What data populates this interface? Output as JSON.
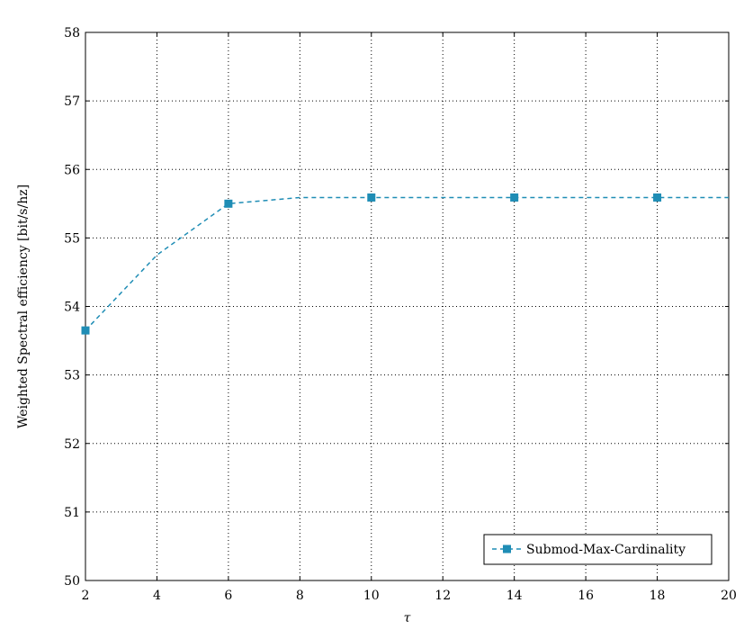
{
  "chart_data": {
    "type": "line",
    "title": "",
    "xlabel": "τ",
    "ylabel": "Weighted Spectral efficiency [bit/s/hz]",
    "xlim": [
      2,
      20
    ],
    "ylim": [
      50,
      58
    ],
    "xticks": [
      2,
      4,
      6,
      8,
      10,
      12,
      14,
      16,
      18,
      20
    ],
    "yticks": [
      50,
      51,
      52,
      53,
      54,
      55,
      56,
      57,
      58
    ],
    "grid": true,
    "legend_position": "bottom-right",
    "series": [
      {
        "name": "Submod-Max-Cardinality",
        "color": "#1f8db5",
        "line_style": "dashed",
        "marker": "square",
        "x": [
          2,
          4,
          6,
          8,
          10,
          12,
          14,
          16,
          18,
          20
        ],
        "y": [
          53.65,
          54.75,
          55.5,
          55.59,
          55.59,
          55.59,
          55.59,
          55.59,
          55.59,
          55.59
        ],
        "marker_x": [
          2,
          6,
          10,
          14,
          18
        ]
      }
    ]
  }
}
